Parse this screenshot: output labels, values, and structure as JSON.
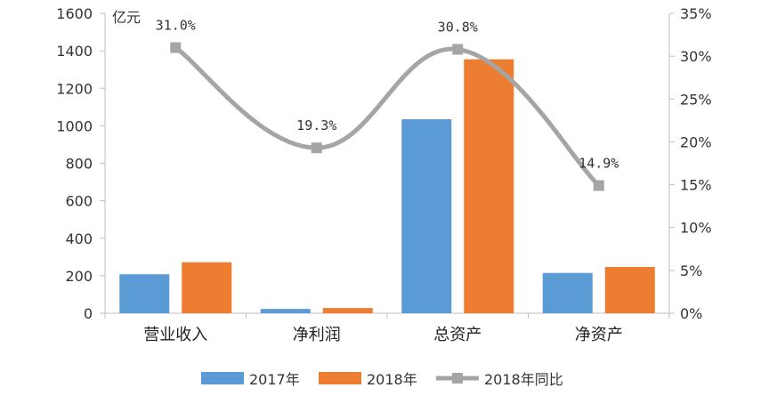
{
  "chart_data": {
    "type": "bar",
    "categories": [
      "营业收入",
      "净利润",
      "总资产",
      "净资产"
    ],
    "series": [
      {
        "name": "2017年",
        "type": "bar",
        "axis": "left",
        "color": "#5B9BD5",
        "values": [
          208,
          23,
          1035,
          215
        ]
      },
      {
        "name": "2018年",
        "type": "bar",
        "axis": "left",
        "color": "#ED7D31",
        "values": [
          272,
          28,
          1355,
          247
        ]
      },
      {
        "name": "2018年同比",
        "type": "line",
        "axis": "right",
        "color": "#A5A5A5",
        "values": [
          31.0,
          19.3,
          30.8,
          14.9
        ]
      }
    ],
    "data_labels": [
      "31.0%",
      "19.3%",
      "30.8%",
      "14.9%"
    ],
    "yunit": "亿元",
    "ylim": [
      0,
      1600
    ],
    "yticks": [
      "0",
      "200",
      "400",
      "600",
      "800",
      "1000",
      "1200",
      "1400",
      "1600"
    ],
    "y2lim": [
      0,
      35
    ],
    "y2ticks": [
      "0%",
      "5%",
      "10%",
      "15%",
      "20%",
      "25%",
      "30%",
      "35%"
    ],
    "legend_position": "bottom",
    "grid": false
  }
}
